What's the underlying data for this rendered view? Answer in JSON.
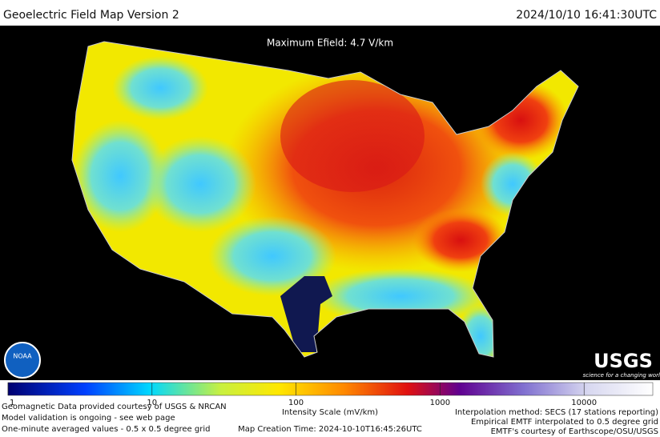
{
  "header": {
    "title": "Geoelectric Field Map Version 2",
    "timestamp": "2024/10/10 16:41:30UTC"
  },
  "map": {
    "annotation": "Maximum Efield: 4.7 V/km"
  },
  "logos": {
    "noaa": "NOAA",
    "usgs": "USGS",
    "usgs_tagline": "science for a changing world"
  },
  "colorbar": {
    "label": "Intensity Scale (mV/km)",
    "log": true,
    "clim": [
      1,
      30000
    ],
    "ticks": [
      1,
      10,
      100,
      1000,
      10000
    ]
  },
  "footer": {
    "left": [
      "Geomagnetic Data provided courtesy of USGS & NRCAN",
      "Model validation is ongoing - see web page",
      "One-minute averaged values - 0.5 x 0.5 degree grid"
    ],
    "center": "Map Creation Time: 2024-10-10T16:45:26UTC",
    "right": [
      "Interpolation method: SECS (17 stations reporting)",
      "Empirical EMTF interpolated to 0.5 degree grid",
      "EMTF's courtesy of Earthscope/OSU/USGS"
    ]
  }
}
